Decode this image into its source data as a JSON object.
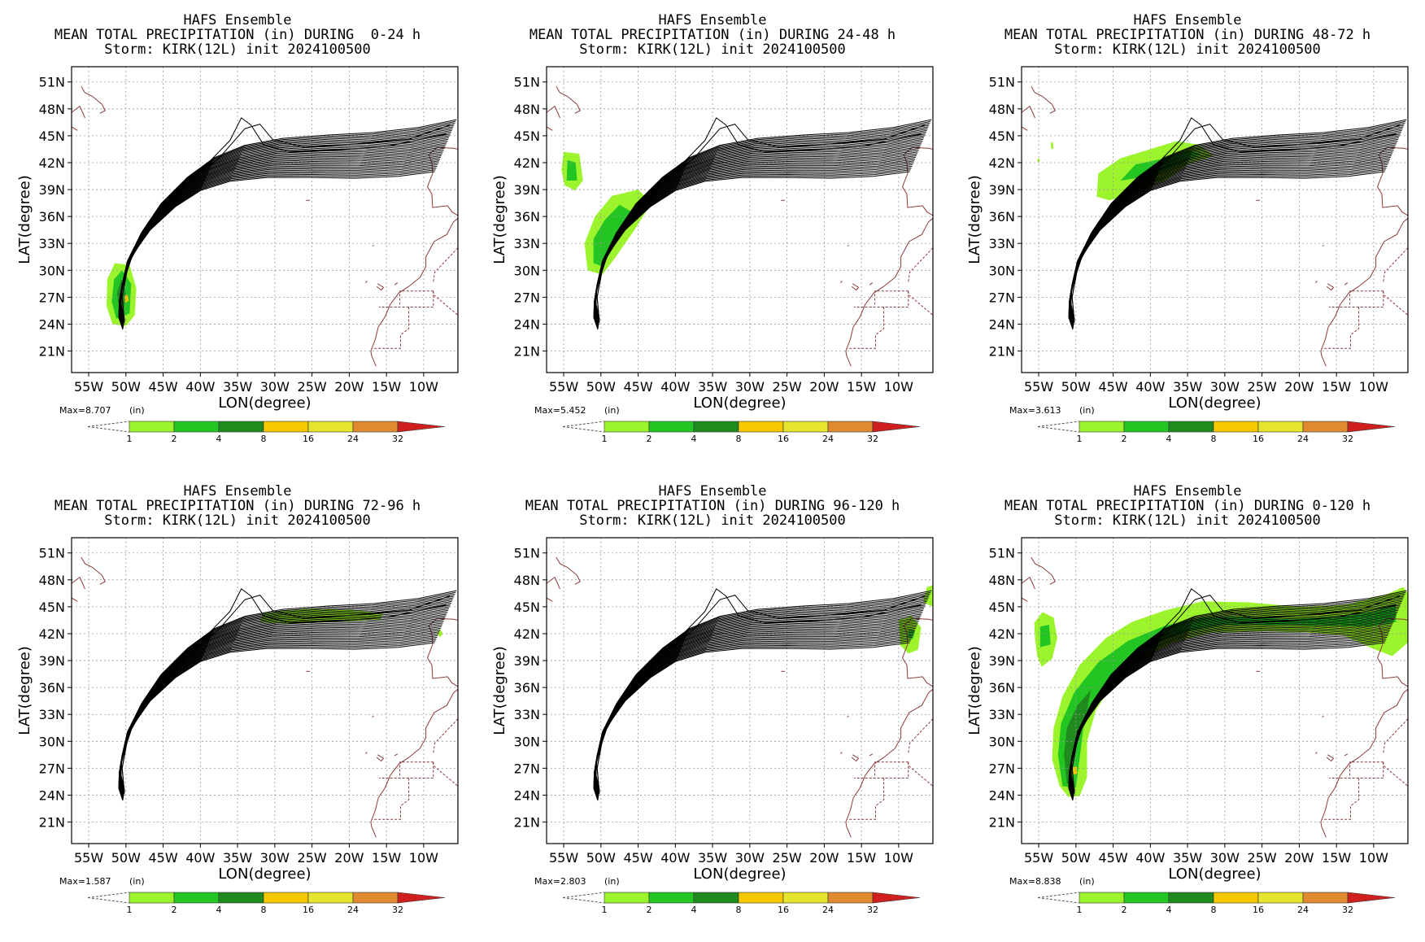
{
  "common": {
    "title1": "HAFS Ensemble",
    "title3": "Storm: KIRK(12L) init 2024100500",
    "ylabel": "LAT(degree)",
    "xlabel": "LON(degree)",
    "units": "(in)",
    "lat_ticks": [
      "51N",
      "48N",
      "45N",
      "42N",
      "39N",
      "36N",
      "33N",
      "30N",
      "27N",
      "24N",
      "21N"
    ],
    "lon_ticks": [
      "55W",
      "50W",
      "45W",
      "40W",
      "35W",
      "30W",
      "25W",
      "20W",
      "15W",
      "10W"
    ],
    "colorbar_labels": [
      "1",
      "2",
      "4",
      "8",
      "16",
      "24",
      "32"
    ],
    "colorbar_colors": [
      "#9cf52c",
      "#22c522",
      "#1f8b1f",
      "#f5c800",
      "#e5e530",
      "#e08a30",
      "#d01f1f"
    ]
  },
  "panels": [
    {
      "title2": "MEAN TOTAL PRECIPITATION (in) DURING  0-24 h",
      "max_label": "Max=8.707"
    },
    {
      "title2": "MEAN TOTAL PRECIPITATION (in) DURING 24-48 h",
      "max_label": "Max=5.452"
    },
    {
      "title2": "MEAN TOTAL PRECIPITATION (in) DURING 48-72 h",
      "max_label": "Max=3.613"
    },
    {
      "title2": "MEAN TOTAL PRECIPITATION (in) DURING 72-96 h",
      "max_label": "Max=1.587"
    },
    {
      "title2": "MEAN TOTAL PRECIPITATION (in) DURING 96-120 h",
      "max_label": "Max=2.803"
    },
    {
      "title2": "MEAN TOTAL PRECIPITATION (in) DURING 0-120 h",
      "max_label": "Max=8.838"
    }
  ]
}
